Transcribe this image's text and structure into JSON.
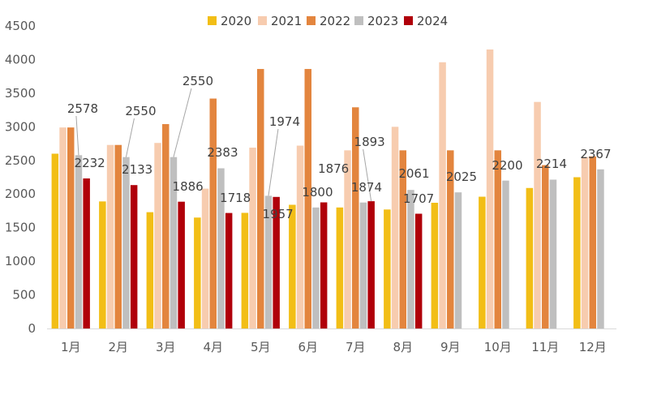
{
  "chart_data": {
    "type": "bar",
    "title": "",
    "xlabel": "",
    "ylabel": "",
    "ylim": [
      0,
      4500
    ],
    "yticks": [
      0,
      500,
      1000,
      1500,
      2000,
      2500,
      3000,
      3500,
      4000,
      4500
    ],
    "grid": false,
    "legend_position": "top",
    "categories": [
      "1月",
      "2月",
      "3月",
      "4月",
      "5月",
      "6月",
      "7月",
      "8月",
      "9月",
      "10月",
      "11月",
      "12月"
    ],
    "series": [
      {
        "name": "2020",
        "color": "#F2BE16",
        "values": [
          2600,
          1890,
          1730,
          1650,
          1720,
          1840,
          1800,
          1770,
          1870,
          1960,
          2090,
          2250
        ]
      },
      {
        "name": "2021",
        "color": "#F7CCAF",
        "values": [
          2990,
          2730,
          2760,
          2080,
          2690,
          2720,
          2650,
          3000,
          3960,
          4150,
          3370,
          2550
        ]
      },
      {
        "name": "2022",
        "color": "#E3853E",
        "values": [
          2990,
          2730,
          3040,
          3420,
          3860,
          3860,
          3290,
          2650,
          2650,
          2650,
          2430,
          2560
        ]
      },
      {
        "name": "2023",
        "color": "#BFBFBF",
        "values": [
          2578,
          2550,
          2550,
          2383,
          1974,
          1800,
          1874,
          2061,
          2025,
          2200,
          2214,
          2367
        ]
      },
      {
        "name": "2024",
        "color": "#B0000A",
        "values": [
          2232,
          2133,
          1886,
          1718,
          1957,
          1876,
          1893,
          1707,
          null,
          null,
          null,
          null
        ]
      }
    ],
    "data_labels": [
      {
        "text": "2578",
        "series": 3,
        "index": 0
      },
      {
        "text": "2232",
        "series": 4,
        "index": 0
      },
      {
        "text": "2550",
        "series": 3,
        "index": 1
      },
      {
        "text": "2133",
        "series": 4,
        "index": 1
      },
      {
        "text": "2550",
        "series": 3,
        "index": 2
      },
      {
        "text": "1886",
        "series": 4,
        "index": 2
      },
      {
        "text": "2383",
        "series": 3,
        "index": 3
      },
      {
        "text": "1718",
        "series": 4,
        "index": 3
      },
      {
        "text": "1974",
        "series": 3,
        "index": 4
      },
      {
        "text": "1957",
        "series": 4,
        "index": 4
      },
      {
        "text": "1800",
        "series": 3,
        "index": 5
      },
      {
        "text": "1876",
        "series": 4,
        "index": 5
      },
      {
        "text": "1874",
        "series": 3,
        "index": 6
      },
      {
        "text": "1893",
        "series": 4,
        "index": 6
      },
      {
        "text": "2061",
        "series": 3,
        "index": 7
      },
      {
        "text": "1707",
        "series": 4,
        "index": 7
      },
      {
        "text": "2025",
        "series": 3,
        "index": 8
      },
      {
        "text": "2200",
        "series": 3,
        "index": 9
      },
      {
        "text": "2214",
        "series": 3,
        "index": 10
      },
      {
        "text": "2367",
        "series": 3,
        "index": 11
      }
    ]
  }
}
